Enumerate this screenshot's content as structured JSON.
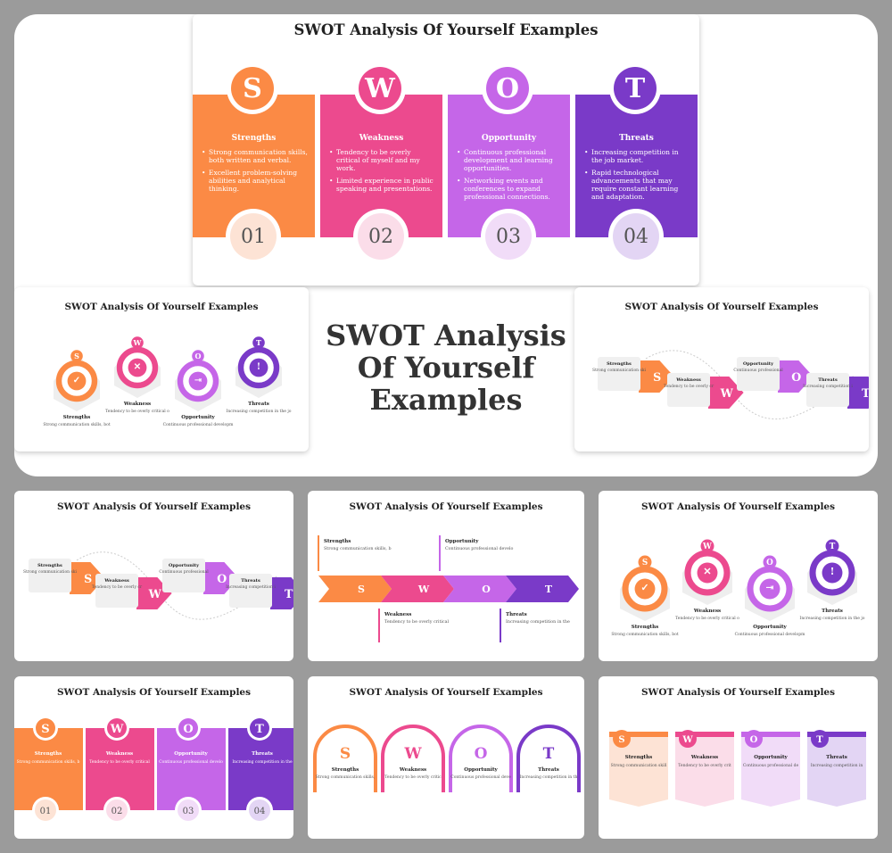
{
  "title": "SWOT Analysis Of Yourself Examples",
  "center_title": "SWOT Analysis Of Yourself Examples",
  "colors": {
    "orange": "#fb8a45",
    "pink": "#ec4a8e",
    "violet": "#c566e8",
    "purple": "#7a3ac8",
    "num_orange": "#fde3d5",
    "num_pink": "#fbdde9",
    "num_violet": "#f1dcf8",
    "num_purple": "#e3d5f4"
  },
  "swot": [
    {
      "letter": "S",
      "heading": "Strengths",
      "number": "01",
      "bullets": [
        "Strong communication skills, both written and verbal.",
        "Excellent problem-solving abilities and analytical thinking."
      ],
      "short": "Strong communication skills, both written and verbal."
    },
    {
      "letter": "W",
      "heading": "Weakness",
      "number": "02",
      "bullets": [
        "Tendency to be overly critical of myself and my work.",
        "Limited experience in public speaking and presentations."
      ],
      "short": "Tendency to be overly critical of myself and my work."
    },
    {
      "letter": "O",
      "heading": "Opportunity",
      "number": "03",
      "bullets": [
        "Continuous professional development and learning opportunities.",
        "Networking events and conferences to expand professional connections."
      ],
      "short": "Continuous professional development and learning opportunities."
    },
    {
      "letter": "T",
      "heading": "Threats",
      "number": "04",
      "bullets": [
        "Increasing competition in the job market.",
        "Rapid technological advancements that may require constant learning and adaptation."
      ],
      "short": "Increasing competition in the job market."
    }
  ]
}
